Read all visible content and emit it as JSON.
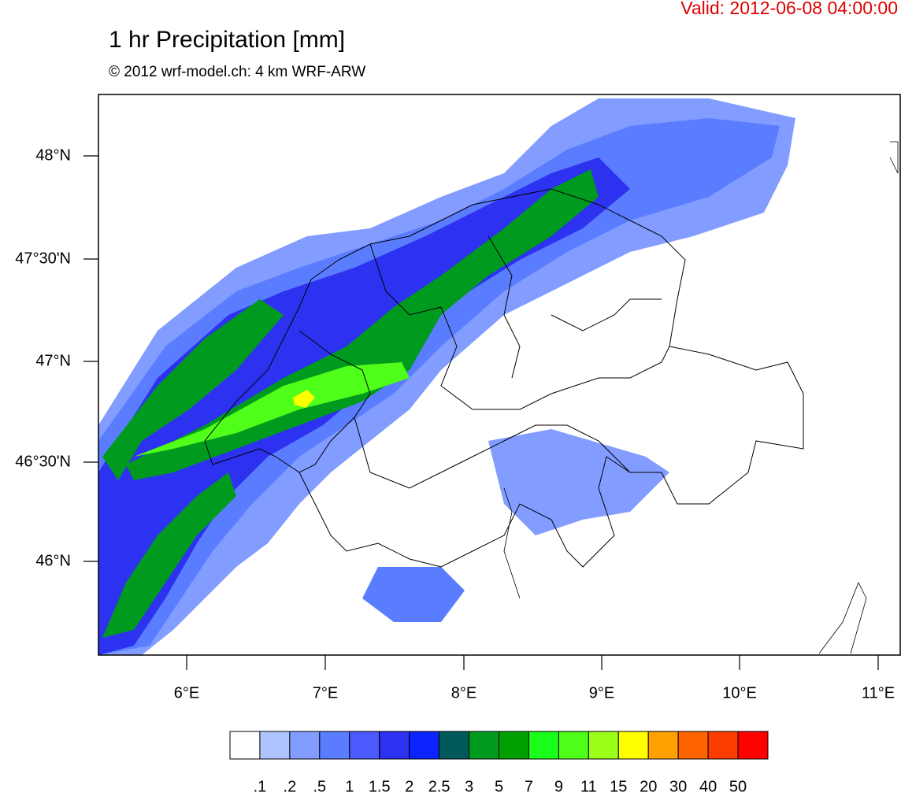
{
  "header": {
    "valid": "Valid: 2012-06-08 04:00:00",
    "title": "1 hr Precipitation [mm]",
    "subtitle": "© 2012 wrf-model.ch: 4 km WRF-ARW"
  },
  "axes": {
    "lat_labels": [
      "48°N",
      "47°30'N",
      "47°N",
      "46°30'N",
      "46°N"
    ],
    "lon_labels": [
      "6°E",
      "7°E",
      "8°E",
      "9°E",
      "10°E",
      "11°E"
    ]
  },
  "legend": {
    "colors": [
      "#ffffff",
      "#afc3ff",
      "#829cff",
      "#5a7dff",
      "#4b5aff",
      "#2d32f0",
      "#0a23ff",
      "#005a5a",
      "#009b1e",
      "#00a000",
      "#19ff19",
      "#50ff19",
      "#9bff19",
      "#ffff00",
      "#ffa000",
      "#ff6400",
      "#ff3c00",
      "#ff0000"
    ],
    "labels": [
      ".1",
      ".2",
      ".5",
      "1",
      "1.5",
      "2",
      "2.5",
      "3",
      "5",
      "7",
      "9",
      "11",
      "15",
      "20",
      "30",
      "40",
      "50"
    ]
  }
}
